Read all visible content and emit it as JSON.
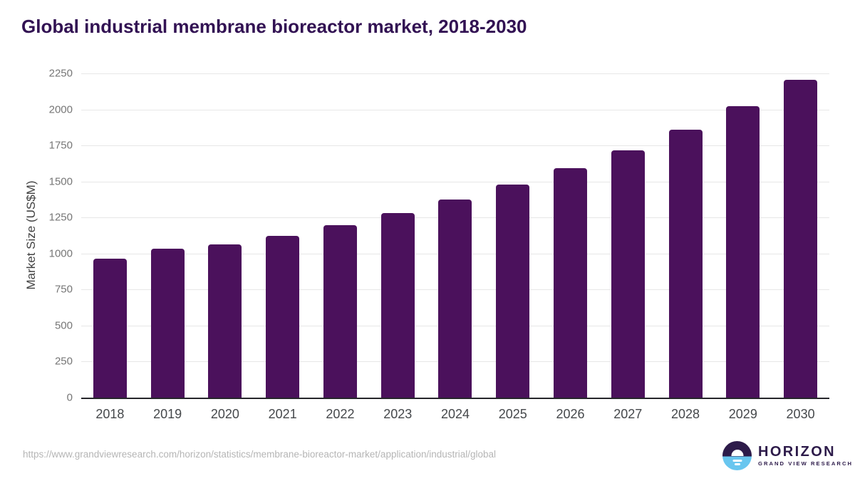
{
  "header": {
    "title": "Global industrial membrane bioreactor market, 2018-2030"
  },
  "chart_data": {
    "type": "bar",
    "title": "Global industrial membrane bioreactor market, 2018-2030",
    "categories": [
      "2018",
      "2019",
      "2020",
      "2021",
      "2022",
      "2023",
      "2024",
      "2025",
      "2026",
      "2027",
      "2028",
      "2029",
      "2030"
    ],
    "values": [
      963,
      1032,
      1064,
      1122,
      1196,
      1279,
      1373,
      1479,
      1590,
      1716,
      1859,
      2023,
      2205
    ],
    "xlabel": "",
    "ylabel": "Market Size (US$M)",
    "ylim": [
      0,
      2250
    ],
    "yticks": [
      0,
      250,
      500,
      750,
      1000,
      1250,
      1500,
      1750,
      2000,
      2250
    ],
    "grid": true,
    "legend": "none",
    "bar_color": "#4b115c"
  },
  "footer": {
    "source_url": "https://www.grandviewresearch.com/horizon/statistics/membrane-bioreactor-market/application/industrial/global",
    "logo": {
      "brand": "HORIZON",
      "tagline": "GRAND VIEW RESEARCH"
    }
  },
  "colors": {
    "bar": "#4b115c",
    "title_text": "#321253",
    "logo_purple": "#2d1b4a",
    "logo_blue": "#69c6ef",
    "y_tick_text": "#767676",
    "x_tick_text": "#45484b",
    "gridline": "#e7e7e7",
    "source_url_text": "#b5b5b5"
  }
}
